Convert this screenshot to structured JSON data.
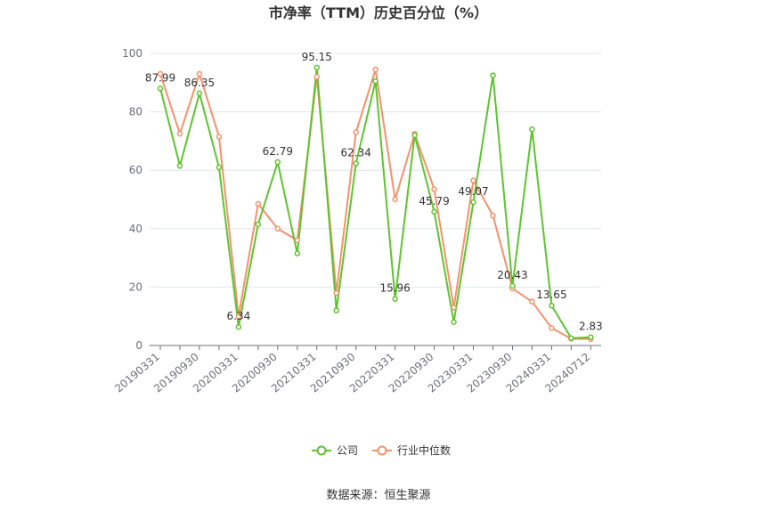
{
  "chart_data": {
    "type": "line",
    "title": "市净率（TTM）历史百分位（%）",
    "source": "数据来源：恒生聚源",
    "ylim": [
      0,
      100
    ],
    "yticks": [
      0,
      20,
      40,
      60,
      80,
      100
    ],
    "grid": true,
    "legend_position": "bottom",
    "x_tick_labels": [
      "20190331",
      "20190930",
      "20200331",
      "20200930",
      "20210331",
      "20210930",
      "20220331",
      "20220930",
      "20230331",
      "20230930",
      "20240331",
      "20240712"
    ],
    "x": [
      "20190331",
      "20190630",
      "20190930",
      "20191231",
      "20200331",
      "20200630",
      "20200930",
      "20201231",
      "20210331",
      "20210630",
      "20210930",
      "20211231",
      "20220331",
      "20220630",
      "20220930",
      "20221231",
      "20230331",
      "20230630",
      "20230930",
      "20231231",
      "20240331",
      "20240630",
      "20240712"
    ],
    "series": [
      {
        "name": "公司",
        "color": "#5ec42e",
        "values": [
          87.99,
          61.5,
          86.35,
          61,
          6.34,
          41.5,
          62.79,
          31.5,
          95.15,
          12,
          62.34,
          90.5,
          15.96,
          72,
          45.79,
          8,
          49.07,
          92.5,
          20.43,
          74,
          13.65,
          2.5,
          2.83
        ]
      },
      {
        "name": "行业中位数",
        "color": "#f4926c",
        "values": [
          93,
          72.5,
          93,
          71.5,
          10,
          48.5,
          40,
          36,
          92,
          18,
          73,
          94.5,
          50,
          72.5,
          53.5,
          13,
          56.5,
          44.5,
          19.5,
          15,
          6,
          2.3,
          2.2
        ]
      }
    ],
    "data_labels": [
      {
        "index": 0,
        "text": "87.99"
      },
      {
        "index": 2,
        "text": "86.35"
      },
      {
        "index": 4,
        "text": "6.34"
      },
      {
        "index": 6,
        "text": "62.79"
      },
      {
        "index": 8,
        "text": "95.15"
      },
      {
        "index": 10,
        "text": "62.34"
      },
      {
        "index": 12,
        "text": "15.96"
      },
      {
        "index": 14,
        "text": "45.79"
      },
      {
        "index": 16,
        "text": "49.07"
      },
      {
        "index": 18,
        "text": "20.43"
      },
      {
        "index": 20,
        "text": "13.65"
      },
      {
        "index": 22,
        "text": "2.83"
      }
    ]
  }
}
